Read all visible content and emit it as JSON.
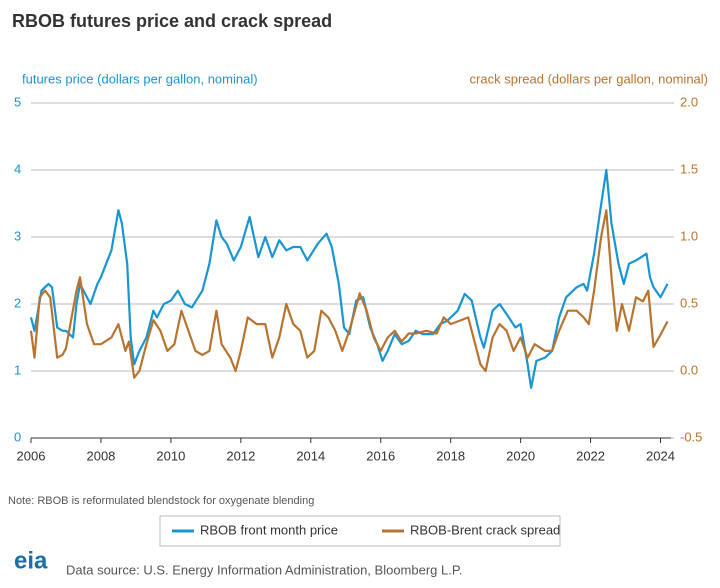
{
  "chart_data": {
    "type": "line",
    "title": "RBOB futures price and crack spread",
    "ylabel": "futures price (dollars per gallon, nominal)",
    "y2label": "crack spread (dollars per gallon, nominal)",
    "note": "Note: RBOB is reformulated blendstock for oxygenate blending",
    "source": "Data source: U.S. Energy Information Administration, Bloomberg L.P.",
    "logo": "eia",
    "xlim": [
      2006,
      2024.3
    ],
    "xticks": [
      2006,
      2008,
      2010,
      2012,
      2014,
      2016,
      2018,
      2020,
      2022,
      2024
    ],
    "ylim": [
      0,
      5
    ],
    "yticks": [
      0,
      1,
      2,
      3,
      4,
      5
    ],
    "y2lim": [
      -0.5,
      2.0
    ],
    "y2ticks": [
      -0.5,
      {
        "value": 0,
        "label": "0.0"
      },
      0.5,
      {
        "value": 1,
        "label": "1.0"
      },
      1.5,
      {
        "value": 2,
        "label": "2.0"
      }
    ],
    "grid": true,
    "legend": "bottom",
    "series": [
      {
        "name": "RBOB front month price",
        "color": "#1896d2",
        "axis": "y",
        "x": [
          2006.0,
          2006.1,
          2006.3,
          2006.5,
          2006.6,
          2006.75,
          2006.9,
          2007.0,
          2007.2,
          2007.3,
          2007.4,
          2007.5,
          2007.7,
          2007.9,
          2008.0,
          2008.3,
          2008.5,
          2008.6,
          2008.75,
          2008.85,
          2008.95,
          2009.1,
          2009.3,
          2009.5,
          2009.6,
          2009.8,
          2010.0,
          2010.2,
          2010.4,
          2010.6,
          2010.9,
          2011.1,
          2011.3,
          2011.45,
          2011.6,
          2011.8,
          2012.0,
          2012.25,
          2012.5,
          2012.7,
          2012.9,
          2013.1,
          2013.3,
          2013.5,
          2013.7,
          2013.9,
          2014.2,
          2014.45,
          2014.6,
          2014.8,
          2014.95,
          2015.1,
          2015.3,
          2015.5,
          2015.7,
          2015.9,
          2016.05,
          2016.2,
          2016.4,
          2016.6,
          2016.8,
          2017.0,
          2017.2,
          2017.5,
          2017.7,
          2017.9,
          2018.2,
          2018.4,
          2018.6,
          2018.85,
          2018.95,
          2019.2,
          2019.4,
          2019.6,
          2019.85,
          2020.0,
          2020.2,
          2020.3,
          2020.45,
          2020.7,
          2020.9,
          2021.1,
          2021.3,
          2021.6,
          2021.8,
          2021.9,
          2022.1,
          2022.25,
          2022.45,
          2022.6,
          2022.8,
          2022.95,
          2023.1,
          2023.3,
          2023.6,
          2023.7,
          2023.8,
          2024.0,
          2024.2
        ],
        "values": [
          1.8,
          1.6,
          2.2,
          2.3,
          2.25,
          1.65,
          1.6,
          1.6,
          1.5,
          2.0,
          2.3,
          2.2,
          2.0,
          2.3,
          2.4,
          2.8,
          3.4,
          3.2,
          2.6,
          1.5,
          1.1,
          1.3,
          1.5,
          1.9,
          1.8,
          2.0,
          2.05,
          2.2,
          2.0,
          1.95,
          2.2,
          2.6,
          3.25,
          3.0,
          2.9,
          2.65,
          2.85,
          3.3,
          2.7,
          3.0,
          2.7,
          2.95,
          2.8,
          2.85,
          2.85,
          2.65,
          2.9,
          3.05,
          2.85,
          2.3,
          1.65,
          1.55,
          2.05,
          2.1,
          1.65,
          1.4,
          1.15,
          1.3,
          1.55,
          1.4,
          1.45,
          1.6,
          1.55,
          1.55,
          1.7,
          1.75,
          1.9,
          2.15,
          2.05,
          1.5,
          1.35,
          1.9,
          2.0,
          1.85,
          1.65,
          1.7,
          1.1,
          0.75,
          1.15,
          1.2,
          1.3,
          1.8,
          2.1,
          2.25,
          2.3,
          2.2,
          2.75,
          3.3,
          4.0,
          3.2,
          2.6,
          2.3,
          2.6,
          2.65,
          2.75,
          2.4,
          2.25,
          2.1,
          2.3
        ]
      },
      {
        "name": "RBOB-Brent crack spread",
        "color": "#b8742f",
        "axis": "y2",
        "x": [
          2006.0,
          2006.1,
          2006.25,
          2006.4,
          2006.55,
          2006.75,
          2006.9,
          2007.0,
          2007.3,
          2007.4,
          2007.6,
          2007.8,
          2008.0,
          2008.3,
          2008.5,
          2008.7,
          2008.8,
          2008.95,
          2009.1,
          2009.3,
          2009.5,
          2009.7,
          2009.9,
          2010.1,
          2010.3,
          2010.5,
          2010.7,
          2010.9,
          2011.1,
          2011.3,
          2011.45,
          2011.7,
          2011.85,
          2012.0,
          2012.2,
          2012.45,
          2012.7,
          2012.9,
          2013.1,
          2013.3,
          2013.5,
          2013.7,
          2013.9,
          2014.1,
          2014.3,
          2014.5,
          2014.7,
          2014.9,
          2015.1,
          2015.4,
          2015.6,
          2015.8,
          2016.0,
          2016.2,
          2016.4,
          2016.6,
          2016.8,
          2017.0,
          2017.3,
          2017.6,
          2017.8,
          2018.0,
          2018.3,
          2018.5,
          2018.7,
          2018.85,
          2019.0,
          2019.2,
          2019.4,
          2019.6,
          2019.8,
          2020.0,
          2020.2,
          2020.4,
          2020.7,
          2020.9,
          2021.1,
          2021.35,
          2021.6,
          2021.8,
          2021.95,
          2022.1,
          2022.3,
          2022.45,
          2022.6,
          2022.75,
          2022.9,
          2023.1,
          2023.3,
          2023.5,
          2023.65,
          2023.8,
          2024.0,
          2024.2
        ],
        "values": [
          0.3,
          0.1,
          0.55,
          0.6,
          0.55,
          0.1,
          0.12,
          0.17,
          0.6,
          0.7,
          0.35,
          0.2,
          0.2,
          0.25,
          0.35,
          0.15,
          0.22,
          -0.05,
          0.0,
          0.2,
          0.38,
          0.3,
          0.15,
          0.2,
          0.45,
          0.3,
          0.15,
          0.12,
          0.15,
          0.45,
          0.2,
          0.1,
          0.0,
          0.15,
          0.4,
          0.35,
          0.35,
          0.1,
          0.25,
          0.5,
          0.35,
          0.3,
          0.1,
          0.15,
          0.45,
          0.4,
          0.3,
          0.15,
          0.3,
          0.58,
          0.45,
          0.25,
          0.15,
          0.25,
          0.3,
          0.22,
          0.28,
          0.28,
          0.3,
          0.28,
          0.4,
          0.35,
          0.38,
          0.4,
          0.2,
          0.05,
          0.0,
          0.25,
          0.35,
          0.3,
          0.15,
          0.25,
          0.1,
          0.2,
          0.15,
          0.15,
          0.3,
          0.45,
          0.45,
          0.4,
          0.35,
          0.6,
          1.0,
          1.2,
          0.7,
          0.3,
          0.5,
          0.3,
          0.55,
          0.52,
          0.6,
          0.18,
          0.27,
          0.37
        ]
      }
    ]
  }
}
